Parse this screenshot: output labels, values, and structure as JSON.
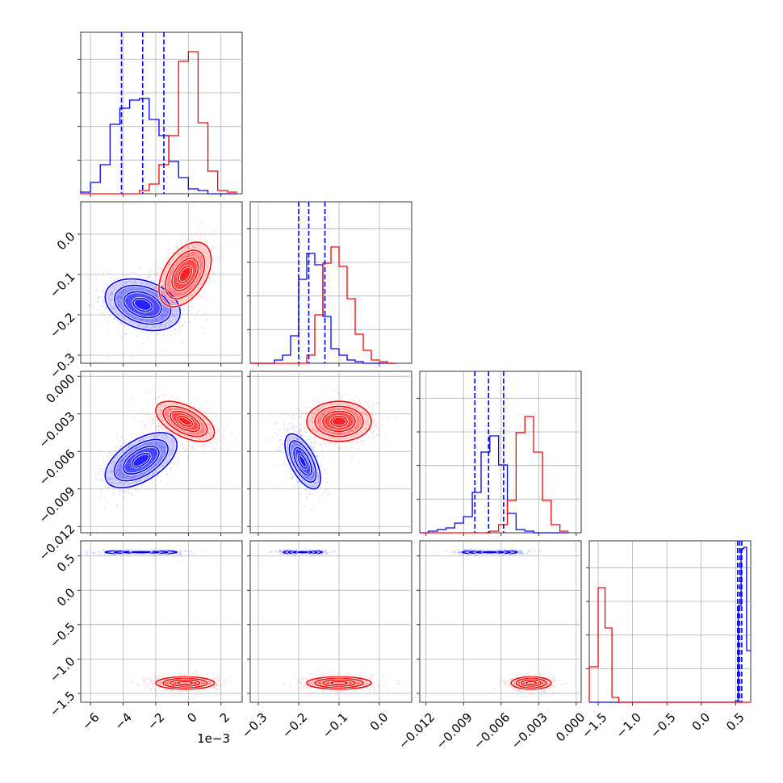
{
  "chart_data": {
    "type": "corner",
    "series": [
      {
        "name": "",
        "color": "#0000ff"
      },
      {
        "name": "",
        "color": "#ff0000"
      }
    ],
    "parameters": [
      {
        "id": "p0",
        "range": [
          -0.0066,
          0.0033
        ],
        "ticks": [
          -0.006,
          -0.004,
          -0.002,
          0.0,
          0.002
        ],
        "tick_labels": [
          "−6",
          "−4",
          "−2",
          "0",
          "2"
        ],
        "offset_label": "1e−3"
      },
      {
        "id": "p1",
        "range": [
          -0.32,
          0.08
        ],
        "ticks": [
          -0.3,
          -0.2,
          -0.1,
          0.0
        ],
        "tick_labels": [
          "−0.3",
          "−0.2",
          "−0.1",
          "0.0"
        ]
      },
      {
        "id": "p2",
        "range": [
          -0.0125,
          0.0004
        ],
        "ticks": [
          -0.012,
          -0.009,
          -0.006,
          -0.003,
          0.0
        ],
        "tick_labels": [
          "−0.012",
          "−0.009",
          "−0.006",
          "−0.003",
          "0.000"
        ]
      },
      {
        "id": "p3",
        "range": [
          -1.63,
          0.72
        ],
        "ticks": [
          -1.5,
          -1.0,
          -0.5,
          0.0,
          0.5
        ],
        "tick_labels": [
          "−1.5",
          "−1.0",
          "−0.5",
          "0.0",
          "0.5"
        ]
      }
    ],
    "quantiles": {
      "p0": [
        -0.0041,
        -0.0028,
        -0.0015
      ],
      "p1": [
        -0.2,
        -0.175,
        -0.135
      ],
      "p2": [
        -0.0081,
        -0.007,
        -0.0058
      ],
      "p3": [
        0.53,
        0.56,
        0.59
      ]
    },
    "marginals": [
      {
        "param": "p0",
        "bin_edges": [
          -0.0066,
          -0.006,
          -0.0054,
          -0.0048,
          -0.0042,
          -0.0036,
          -0.003,
          -0.0024,
          -0.0018,
          -0.0012,
          -0.0006,
          0.0,
          0.0006,
          0.0012,
          0.0018,
          0.0024,
          0.003
        ],
        "counts": {
          "blue": [
            0.01,
            0.07,
            0.18,
            0.43,
            0.53,
            0.58,
            0.59,
            0.46,
            0.36,
            0.2,
            0.1,
            0.03,
            0.02,
            0.0,
            0.0,
            0.0
          ],
          "red": [
            0.0,
            0.0,
            0.0,
            0.0,
            0.0,
            0.0,
            0.02,
            0.06,
            0.18,
            0.36,
            0.82,
            0.88,
            0.44,
            0.14,
            0.02,
            0.01
          ]
        }
      },
      {
        "param": "p1",
        "bin_edges": [
          -0.32,
          -0.3,
          -0.28,
          -0.26,
          -0.24,
          -0.22,
          -0.2,
          -0.18,
          -0.16,
          -0.14,
          -0.12,
          -0.1,
          -0.08,
          -0.06,
          -0.04,
          -0.02,
          0.0,
          0.02,
          0.04
        ],
        "counts": {
          "blue": [
            0.0,
            0.0,
            0.0,
            0.02,
            0.05,
            0.17,
            0.52,
            0.68,
            0.61,
            0.29,
            0.09,
            0.05,
            0.02,
            0.01,
            0.0,
            0.0,
            0.0,
            0.0
          ],
          "red": [
            0.0,
            0.0,
            0.0,
            0.0,
            0.0,
            0.0,
            0.0,
            0.05,
            0.3,
            0.62,
            0.72,
            0.6,
            0.4,
            0.18,
            0.08,
            0.02,
            0.01,
            0.0
          ]
        }
      },
      {
        "param": "p2",
        "bin_edges": [
          -0.0125,
          -0.0118,
          -0.0111,
          -0.0104,
          -0.0097,
          -0.009,
          -0.0083,
          -0.0076,
          -0.0069,
          -0.0062,
          -0.0055,
          -0.0048,
          -0.0041,
          -0.0034,
          -0.0027,
          -0.002,
          -0.0013,
          -0.0006
        ],
        "counts": {
          "blue": [
            0.0,
            0.01,
            0.02,
            0.03,
            0.06,
            0.1,
            0.25,
            0.5,
            0.6,
            0.42,
            0.12,
            0.02,
            0.01,
            0.0,
            0.0,
            0.0,
            0.0
          ],
          "red": [
            0.0,
            0.0,
            0.0,
            0.0,
            0.0,
            0.0,
            0.0,
            0.0,
            0.01,
            0.05,
            0.2,
            0.62,
            0.72,
            0.5,
            0.2,
            0.05,
            0.01
          ]
        }
      },
      {
        "param": "p3",
        "bin_edges": [
          -1.63,
          -1.5,
          -1.4,
          -1.3,
          -1.2,
          -1.1,
          -1.0,
          -0.5,
          0.0,
          0.5,
          0.54,
          0.58,
          0.62,
          0.66,
          0.72
        ],
        "counts": {
          "blue": [
            0.0,
            0.0,
            0.0,
            0.0,
            0.0,
            0.0,
            0.0,
            0.0,
            0.0,
            0.01,
            0.6,
            0.95,
            0.96,
            0.32
          ],
          "red": [
            0.22,
            0.71,
            0.46,
            0.03,
            0.0,
            0.0,
            0.0,
            0.0,
            0.0,
            0.0,
            0.0,
            0.0,
            0.0,
            0.0
          ]
        }
      }
    ],
    "joint": [
      {
        "x": "p0",
        "y": "p1",
        "blue": {
          "center": [
            -0.0028,
            -0.175
          ],
          "sd": [
            0.00115,
            0.032
          ],
          "rho": -0.3
        },
        "red": {
          "center": [
            -0.0002,
            -0.1
          ],
          "sd": [
            0.0008,
            0.04
          ],
          "rho": 0.45
        }
      },
      {
        "x": "p0",
        "y": "p2",
        "blue": {
          "center": [
            -0.0029,
            -0.0067
          ],
          "sd": [
            0.0011,
            0.0011
          ],
          "rho": 0.55
        },
        "red": {
          "center": [
            -0.0002,
            -0.0036
          ],
          "sd": [
            0.0009,
            0.0008
          ],
          "rho": -0.55
        }
      },
      {
        "x": "p1",
        "y": "p2",
        "blue": {
          "center": [
            -0.19,
            -0.0068
          ],
          "sd": [
            0.022,
            0.0011
          ],
          "rho": -0.62
        },
        "red": {
          "center": [
            -0.1,
            -0.0036
          ],
          "sd": [
            0.04,
            0.0008
          ],
          "rho": 0.0
        }
      },
      {
        "x": "p0",
        "y": "p3",
        "blue": {
          "center": [
            -0.0029,
            0.555
          ],
          "sd": [
            0.0011,
            0.015
          ],
          "rho": 0.0
        },
        "red": {
          "center": [
            -0.0002,
            -1.35
          ],
          "sd": [
            0.0009,
            0.045
          ],
          "rho": 0.0
        }
      },
      {
        "x": "p1",
        "y": "p3",
        "blue": {
          "center": [
            -0.19,
            0.555
          ],
          "sd": [
            0.024,
            0.015
          ],
          "rho": 0.0
        },
        "red": {
          "center": [
            -0.1,
            -1.35
          ],
          "sd": [
            0.04,
            0.045
          ],
          "rho": 0.0
        }
      },
      {
        "x": "p2",
        "y": "p3",
        "blue": {
          "center": [
            -0.0069,
            0.555
          ],
          "sd": [
            0.0011,
            0.015
          ],
          "rho": 0.0
        },
        "red": {
          "center": [
            -0.0036,
            -1.35
          ],
          "sd": [
            0.0008,
            0.045
          ],
          "rho": 0.0
        }
      }
    ],
    "contour_levels": [
      "0.5-sigma",
      "1-sigma",
      "1.5-sigma",
      "2-sigma"
    ],
    "grid": true,
    "legend": "none"
  }
}
